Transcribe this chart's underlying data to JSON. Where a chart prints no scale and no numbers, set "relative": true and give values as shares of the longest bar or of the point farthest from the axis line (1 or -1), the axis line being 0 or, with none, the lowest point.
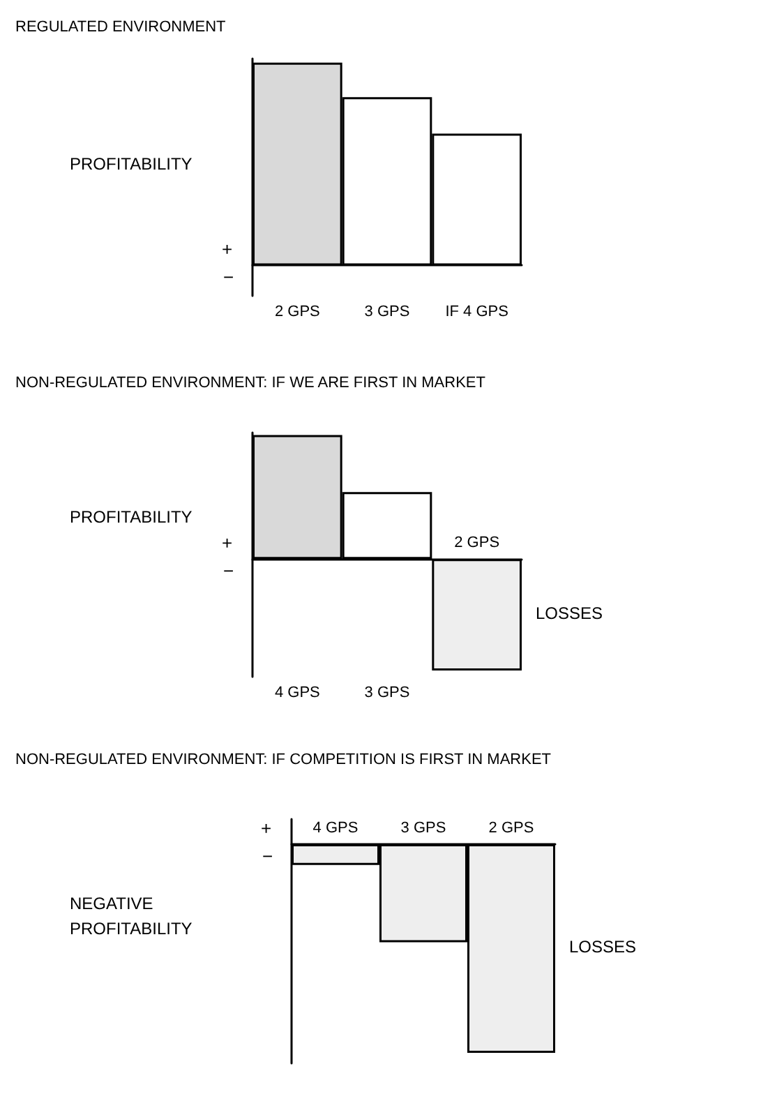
{
  "chart_data": [
    {
      "type": "bar",
      "title": "REGULATED ENVIRONMENT",
      "ylabel": "PROFITABILITY",
      "relative": true,
      "categories": [
        "2 GPS",
        "3 GPS",
        "IF 4 GPS"
      ],
      "values": [
        1,
        0.83,
        0.65
      ],
      "colors": [
        "#d9d9d9",
        "#ffffff",
        "#ffffff"
      ],
      "annotations": [
        "+",
        "−"
      ]
    },
    {
      "type": "bar",
      "title": "NON-REGULATED ENVIRONMENT: IF WE ARE FIRST IN MARKET",
      "ylabel": "PROFITABILITY",
      "relative": true,
      "categories": [
        "4 GPS",
        "3 GPS",
        "2 GPS"
      ],
      "values": [
        1,
        0.54,
        -0.9
      ],
      "colors": [
        "#d9d9d9",
        "#ffffff",
        "#eeeeee"
      ],
      "annotations": [
        "+",
        "−",
        "LOSSES"
      ]
    },
    {
      "type": "bar",
      "title": "NON-REGULATED ENVIRONMENT: IF COMPETITION IS FIRST IN MARKET",
      "ylabel": "NEGATIVE PROFITABILITY",
      "relative": true,
      "categories": [
        "4 GPS",
        "3 GPS",
        "2 GPS"
      ],
      "values": [
        -0.1,
        -0.47,
        -1
      ],
      "colors": [
        "#eeeeee",
        "#eeeeee",
        "#eeeeee"
      ],
      "annotations": [
        "+",
        "−",
        "LOSSES"
      ]
    }
  ]
}
